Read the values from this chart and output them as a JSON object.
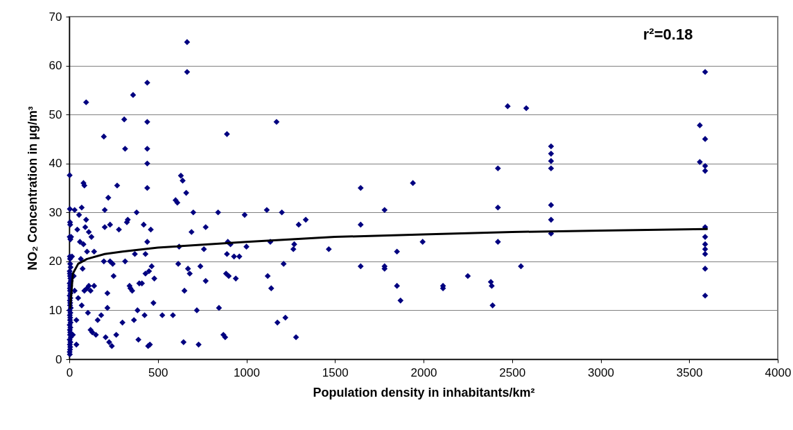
{
  "chart_data": {
    "type": "scatter",
    "xlabel": "Population density in inhabitants/km²",
    "ylabel": "NO₂ Concentration in µg/m³",
    "annotations": [
      "r²=0.18"
    ],
    "xlim": [
      0,
      4000
    ],
    "xticks": [
      0,
      500,
      1000,
      1500,
      2000,
      2500,
      3000,
      3500,
      4000
    ],
    "ylim": [
      0,
      70
    ],
    "yticks": [
      0,
      10,
      20,
      30,
      40,
      50,
      60,
      70
    ],
    "grid": "y",
    "series": [
      {
        "type": "scatter",
        "marker": "diamond",
        "color": "#000080",
        "x": [
          2,
          3,
          4,
          5,
          2,
          6,
          3,
          4,
          5,
          7,
          2,
          3,
          4,
          6,
          8,
          2,
          5,
          3,
          4,
          7,
          2,
          6,
          3,
          5,
          4,
          8,
          2,
          6,
          3,
          5,
          4,
          7,
          2,
          6,
          3,
          5,
          4,
          8,
          2,
          6,
          3,
          5,
          4,
          2,
          3,
          10,
          15,
          20,
          25,
          30,
          30,
          40,
          40,
          45,
          50,
          55,
          60,
          65,
          70,
          70,
          75,
          80,
          80,
          85,
          85,
          90,
          95,
          95,
          100,
          100,
          105,
          110,
          110,
          120,
          120,
          125,
          130,
          140,
          140,
          150,
          160,
          180,
          195,
          195,
          200,
          200,
          205,
          215,
          215,
          220,
          225,
          230,
          230,
          240,
          245,
          250,
          265,
          270,
          280,
          300,
          310,
          315,
          315,
          325,
          330,
          340,
          345,
          355,
          360,
          365,
          370,
          380,
          385,
          390,
          395,
          410,
          420,
          425,
          430,
          430,
          440,
          440,
          440,
          440,
          440,
          440,
          445,
          450,
          455,
          460,
          465,
          475,
          480,
          525,
          585,
          600,
          610,
          615,
          620,
          630,
          640,
          645,
          650,
          660,
          665,
          665,
          670,
          680,
          690,
          700,
          720,
          730,
          740,
          760,
          770,
          770,
          840,
          845,
          870,
          880,
          885,
          890,
          890,
          895,
          900,
          910,
          930,
          940,
          960,
          990,
          1000,
          1115,
          1120,
          1135,
          1140,
          1170,
          1175,
          1200,
          1210,
          1220,
          1265,
          1270,
          1280,
          1295,
          1335,
          1465,
          1645,
          1645,
          1645,
          1780,
          1780,
          1780,
          1850,
          1850,
          1870,
          1940,
          1995,
          2110,
          2110,
          2250,
          2380,
          2385,
          2390,
          2420,
          2420,
          2420,
          2475,
          2550,
          2580,
          2720,
          2720,
          2720,
          2720,
          2720,
          2720,
          2720,
          3560,
          3560,
          3590,
          3590,
          3590,
          3590,
          3590,
          3590,
          3590,
          3590,
          3590,
          3590,
          3590
        ],
        "values": [
          37.6,
          30.7,
          28,
          27.5,
          25,
          24.5,
          21,
          20.5,
          19.5,
          18.8,
          18,
          17.5,
          17,
          16.5,
          16,
          15.5,
          15,
          14.5,
          14,
          13.5,
          13,
          12.5,
          12,
          11.5,
          11,
          10.5,
          10,
          9.5,
          9,
          8.5,
          8,
          7.5,
          7,
          6.5,
          6,
          5.5,
          5,
          4.5,
          4,
          3.5,
          3,
          2.5,
          2,
          1.5,
          1,
          25,
          21,
          5,
          17,
          30.5,
          14,
          3,
          8,
          26.5,
          12.5,
          29.5,
          24,
          20.5,
          31,
          11,
          18.5,
          23.5,
          36,
          35.5,
          14,
          27,
          28.5,
          52.5,
          22,
          14.5,
          9.5,
          26,
          15,
          14,
          6,
          25,
          5.5,
          22,
          15,
          5,
          8,
          9,
          45.5,
          20,
          30.5,
          27,
          4.5,
          13.5,
          10.5,
          33,
          3.5,
          27.5,
          20,
          2.7,
          19.5,
          17,
          5,
          35.5,
          26.5,
          7.5,
          49,
          43,
          20,
          28,
          28.5,
          15,
          14.5,
          14,
          54,
          8,
          21.5,
          30,
          10,
          4,
          15.5,
          15.5,
          27.5,
          9,
          21.5,
          17.5,
          56.5,
          48.5,
          43,
          40,
          35,
          24,
          2.7,
          18,
          3,
          26.5,
          19,
          11.5,
          16.5,
          9,
          9,
          32.5,
          32,
          19.5,
          23,
          37.5,
          36.5,
          3.5,
          14,
          34,
          64.8,
          58.7,
          18.5,
          17.5,
          26,
          30,
          10,
          3,
          19,
          22.5,
          27,
          16,
          30,
          10.5,
          5,
          4.5,
          17.5,
          21.5,
          46,
          24,
          17,
          23.5,
          21,
          16.5,
          21,
          29.5,
          23,
          30.5,
          17,
          24,
          14.5,
          48.5,
          7.5,
          30,
          19.5,
          8.5,
          22.5,
          23.5,
          4.5,
          27.5,
          28.5,
          22.5,
          35,
          27.5,
          19,
          30.5,
          18.5,
          19,
          15,
          22,
          12,
          36,
          24,
          15,
          14.5,
          17,
          15.8,
          15,
          11,
          39,
          31,
          24,
          51.7,
          19,
          51.3,
          43.5,
          42,
          40.5,
          39,
          31.5,
          28.5,
          25.7,
          47.8,
          40.3,
          58.7,
          45,
          39.5,
          38.5,
          27,
          25,
          23.5,
          22.5,
          21.5,
          18.5,
          13
        ]
      },
      {
        "type": "line",
        "marker": "none",
        "line_style": "solid",
        "color": "#000000",
        "x": [
          5,
          20,
          50,
          100,
          200,
          300,
          500,
          1000,
          1500,
          2000,
          2500,
          3000,
          3600
        ],
        "values": [
          10.5,
          17.5,
          19.5,
          20.5,
          21.5,
          22,
          22.8,
          24,
          25,
          25.5,
          26,
          26.3,
          26.6
        ]
      }
    ]
  }
}
